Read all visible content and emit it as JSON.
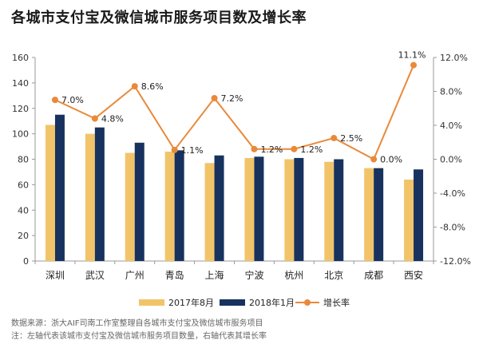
{
  "title": "各城市支付宝及微信城市服务项目数及增长率",
  "chart_data": {
    "type": "bar",
    "categories": [
      "深圳",
      "武汉",
      "广州",
      "青岛",
      "上海",
      "宁波",
      "杭州",
      "北京",
      "成都",
      "西安"
    ],
    "series": [
      {
        "name": "2017年8月",
        "type": "bar",
        "axis": "left",
        "color": "#F2C46A",
        "values": [
          107,
          100,
          85,
          86,
          77,
          81,
          80,
          78,
          73,
          64
        ]
      },
      {
        "name": "2018年1月",
        "type": "bar",
        "axis": "left",
        "color": "#17325E",
        "values": [
          115,
          105,
          93,
          87,
          83,
          82,
          81,
          80,
          73,
          72
        ]
      },
      {
        "name": "增长率",
        "type": "line",
        "axis": "right",
        "color": "#E9893A",
        "values": [
          7.0,
          4.8,
          8.6,
          1.1,
          7.2,
          1.2,
          1.2,
          2.5,
          0.0,
          11.1
        ],
        "labels": [
          "7.0%",
          "4.8%",
          "8.6%",
          "1.1%",
          "7.2%",
          "1.2%",
          "1.2%",
          "2.5%",
          "0.0%",
          "11.1%"
        ]
      }
    ],
    "y_left": {
      "min": 0,
      "max": 160,
      "ticks": [
        "0",
        "20",
        "40",
        "60",
        "80",
        "100",
        "120",
        "140",
        "160"
      ]
    },
    "y_right": {
      "min": -12,
      "max": 12,
      "ticks": [
        "-12.0%",
        "-8.0%",
        "-4.0%",
        "0.0%",
        "4.0%",
        "8.0%",
        "12.0%"
      ]
    },
    "legend_position": "bottom",
    "grid": false
  },
  "notes": {
    "source": "数据来源：浙大AIF司南工作室整理自各城市支付宝及微信城市服务项目",
    "note": "注：左轴代表该城市支付宝及微信城市服务项目数量，右轴代表其增长率"
  }
}
